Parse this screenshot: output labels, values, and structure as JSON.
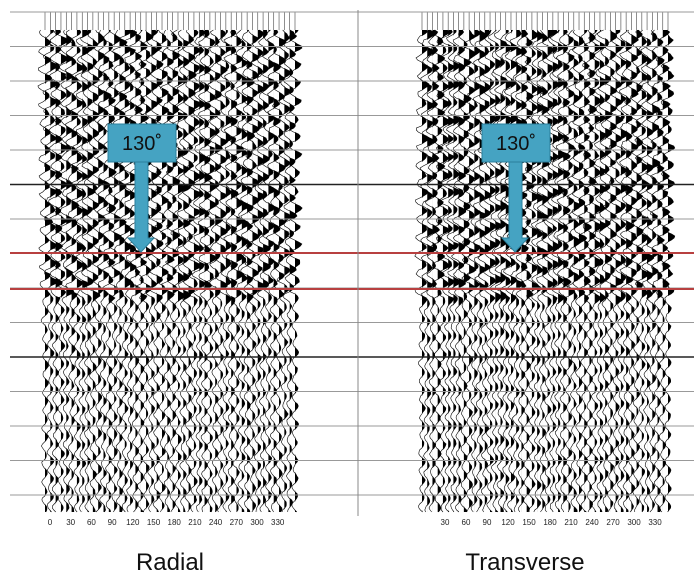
{
  "panels": [
    {
      "label": "Radial",
      "ticks": [
        0,
        30,
        60,
        90,
        120,
        150,
        180,
        210,
        240,
        270,
        300,
        330
      ],
      "callout": "130˚"
    },
    {
      "label": "Transverse",
      "ticks": [
        30,
        60,
        90,
        120,
        150,
        180,
        210,
        240,
        270,
        300,
        330
      ],
      "callout": "130˚"
    }
  ]
}
